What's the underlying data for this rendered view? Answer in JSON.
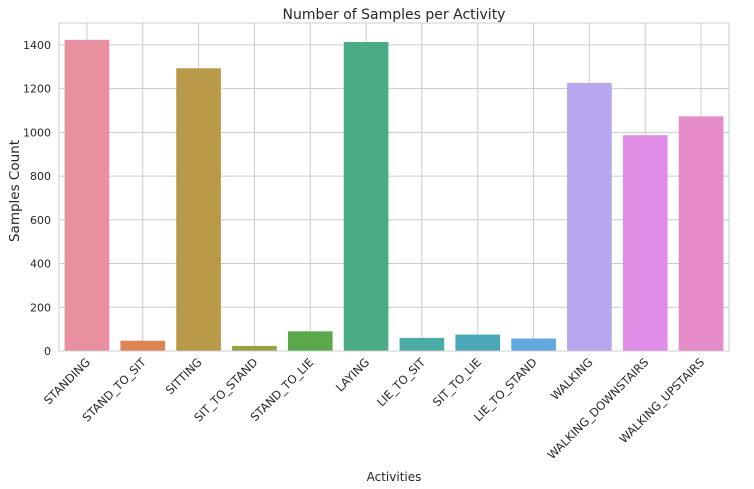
{
  "chart_data": {
    "type": "bar",
    "title": "Number of Samples per Activity",
    "xlabel": "Activities",
    "ylabel": "Samples Count",
    "ylim": [
      0,
      1500
    ],
    "yticks": [
      0,
      200,
      400,
      600,
      800,
      1000,
      1200,
      1400
    ],
    "grid": true,
    "categories": [
      "STANDING",
      "STAND_TO_SIT",
      "SITTING",
      "SIT_TO_STAND",
      "STAND_TO_LIE",
      "LAYING",
      "LIE_TO_SIT",
      "SIT_TO_LIE",
      "LIE_TO_STAND",
      "WALKING",
      "WALKING_DOWNSTAIRS",
      "WALKING_UPSTAIRS"
    ],
    "values": [
      1423,
      47,
      1293,
      23,
      90,
      1413,
      60,
      75,
      57,
      1226,
      987,
      1073
    ],
    "colors": [
      "#e8909f",
      "#dd8452",
      "#b89a48",
      "#98a142",
      "#5ba84c",
      "#4aab86",
      "#4aaca5",
      "#4aa9b9",
      "#63a8e0",
      "#b6a7ee",
      "#e08de8",
      "#e68cc8"
    ]
  }
}
